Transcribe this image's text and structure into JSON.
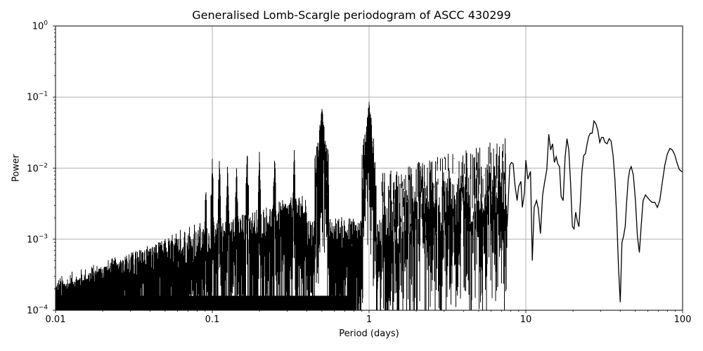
{
  "chart_data": {
    "type": "line",
    "title": "Generalised Lomb-Scargle periodogram of ASCC 430299",
    "xlabel": "Period (days)",
    "ylabel": "Power",
    "xscale": "log",
    "yscale": "log",
    "xlim": [
      0.01,
      100
    ],
    "ylim": [
      0.0001,
      1
    ],
    "grid": true,
    "legend": null,
    "line_color": "#000000",
    "grid_color": "#b0b0b0",
    "x_ticks": [
      {
        "value": 0.01,
        "label": "0.01"
      },
      {
        "value": 0.1,
        "label": "0.1"
      },
      {
        "value": 1,
        "label": "1"
      },
      {
        "value": 10,
        "label": "10"
      },
      {
        "value": 100,
        "label": "100"
      }
    ],
    "y_ticks": [
      {
        "value": 1,
        "base": "10",
        "exp": "0"
      },
      {
        "value": 0.1,
        "base": "10",
        "exp": "−1"
      },
      {
        "value": 0.01,
        "base": "10",
        "exp": "−2"
      },
      {
        "value": 0.001,
        "base": "10",
        "exp": "−3"
      },
      {
        "value": 0.0001,
        "base": "10",
        "exp": "−4"
      }
    ],
    "prominent_peaks": [
      {
        "period": 0.0909,
        "power": 0.0055
      },
      {
        "period": 0.1,
        "power": 0.0135
      },
      {
        "period": 0.111,
        "power": 0.014
      },
      {
        "period": 0.125,
        "power": 0.0115
      },
      {
        "period": 0.143,
        "power": 0.011
      },
      {
        "period": 0.167,
        "power": 0.0175
      },
      {
        "period": 0.2,
        "power": 0.019
      },
      {
        "period": 0.25,
        "power": 0.0165
      },
      {
        "period": 0.333,
        "power": 0.018
      },
      {
        "period": 0.5,
        "power": 0.07
      },
      {
        "period": 1.0,
        "power": 0.085
      }
    ],
    "long_period_curve": {
      "x": [
        7.6,
        7.9,
        8.1,
        8.3,
        8.5,
        8.8,
        9.0,
        9.3,
        9.5,
        9.8,
        10.0,
        10.3,
        10.7,
        11.0,
        11.3,
        11.7,
        12.0,
        12.4,
        12.8,
        13.2,
        13.6,
        14.0,
        14.4,
        14.8,
        15.2,
        15.6,
        16.0,
        16.4,
        16.8,
        17.3,
        17.8,
        18.3,
        18.8,
        19.3,
        19.8,
        20.3,
        20.8,
        21.3,
        21.8,
        22.3,
        22.8,
        23.4,
        24.0,
        24.6,
        25.2,
        25.8,
        26.5,
        27.2,
        28.0,
        28.8,
        29.6,
        30.4,
        31.2,
        32.0,
        33.0,
        34.0,
        35.0,
        36.0,
        37.0,
        38.0,
        39.0,
        40.0,
        41.0,
        42.0,
        43.0,
        44.0,
        45.0,
        46.0,
        47.0,
        48.5,
        50.0,
        51.5,
        53.0,
        54.5,
        56.0,
        58.0,
        60.0,
        62.0,
        64.0,
        66.5,
        69.0,
        71.5,
        74.0,
        77.0,
        80.0,
        83.0,
        86.0,
        89.0,
        92.0,
        95.0,
        98.0,
        100.0
      ],
      "y": [
        0.0015,
        0.011,
        0.012,
        0.0115,
        0.006,
        0.0035,
        0.0055,
        0.0065,
        0.0028,
        0.0045,
        0.013,
        0.007,
        0.009,
        0.0005,
        0.0028,
        0.0035,
        0.0027,
        0.0012,
        0.0042,
        0.0065,
        0.0095,
        0.03,
        0.018,
        0.022,
        0.012,
        0.0145,
        0.0115,
        0.0105,
        0.004,
        0.0035,
        0.014,
        0.026,
        0.018,
        0.006,
        0.0015,
        0.0014,
        0.0024,
        0.0018,
        0.0015,
        0.0035,
        0.009,
        0.015,
        0.016,
        0.022,
        0.028,
        0.031,
        0.031,
        0.046,
        0.042,
        0.034,
        0.023,
        0.027,
        0.027,
        0.023,
        0.022,
        0.026,
        0.024,
        0.015,
        0.007,
        0.002,
        0.0004,
        0.00013,
        0.0009,
        0.0011,
        0.0015,
        0.0035,
        0.007,
        0.0095,
        0.0105,
        0.008,
        0.0035,
        0.0011,
        0.00065,
        0.0016,
        0.0035,
        0.0042,
        0.0038,
        0.0035,
        0.0033,
        0.0033,
        0.0028,
        0.0035,
        0.006,
        0.011,
        0.016,
        0.019,
        0.018,
        0.0155,
        0.012,
        0.0097,
        0.009,
        0.009
      ]
    }
  }
}
